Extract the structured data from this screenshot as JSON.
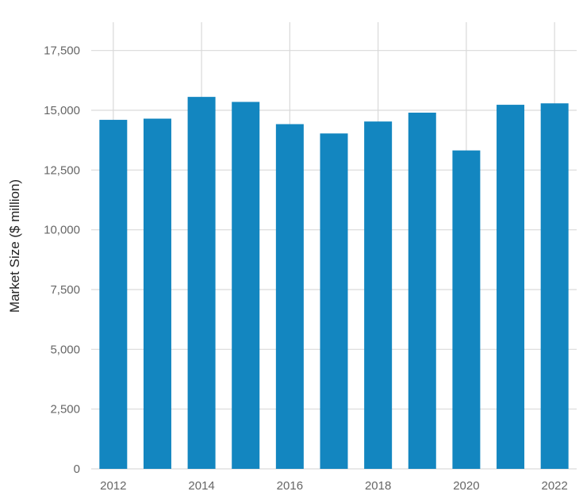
{
  "chart_data": {
    "type": "bar",
    "title": "",
    "xlabel": "",
    "ylabel": "Market Size ($ million)",
    "categories": [
      "2012",
      "2013",
      "2014",
      "2015",
      "2016",
      "2017",
      "2018",
      "2019",
      "2020",
      "2021",
      "2022"
    ],
    "values": [
      14600,
      14650,
      15560,
      15350,
      14420,
      14030,
      14530,
      14900,
      13320,
      15230,
      15290
    ],
    "x_tick_labels": [
      "2012",
      "2014",
      "2016",
      "2018",
      "2020",
      "2022"
    ],
    "y_ticks": [
      0,
      2500,
      5000,
      7500,
      10000,
      12500,
      15000,
      17500
    ],
    "y_tick_labels": [
      "0",
      "2,500",
      "5,000",
      "7,500",
      "10,000",
      "12,500",
      "15,000",
      "17,500"
    ],
    "ylim": [
      0,
      18500
    ],
    "grid": true,
    "legend": null,
    "bar_color": "#1386c0",
    "grid_color": "#d9d9d9"
  }
}
